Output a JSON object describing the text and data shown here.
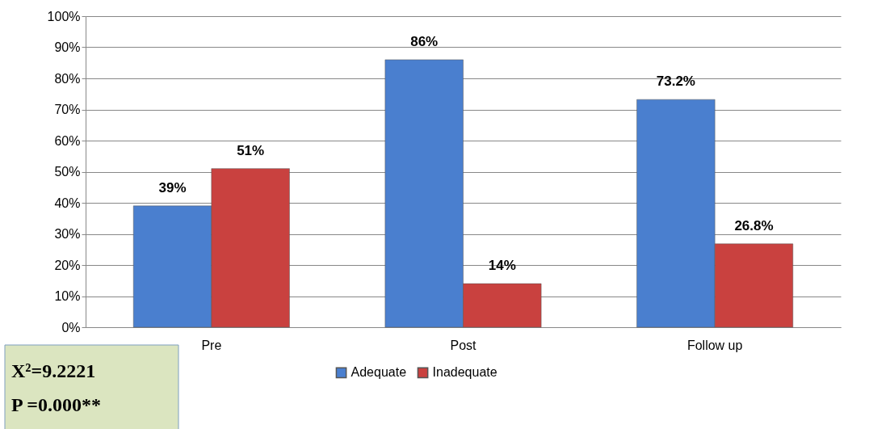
{
  "chart_data": {
    "type": "bar",
    "categories": [
      "Pre",
      "Post",
      "Follow up"
    ],
    "series": [
      {
        "name": "Adequate",
        "color": "#4a7fcf",
        "values": [
          39,
          86,
          73.2
        ],
        "value_labels": [
          "39%",
          "86%",
          "73.2%"
        ]
      },
      {
        "name": "Inadequate",
        "color": "#c9413f",
        "values": [
          51,
          14,
          26.8
        ],
        "value_labels": [
          "51%",
          "14%",
          "26.8%"
        ]
      }
    ],
    "ylim": [
      0,
      100
    ],
    "yticks": [
      {
        "value": 0,
        "label": "0%"
      },
      {
        "value": 10,
        "label": "10%"
      },
      {
        "value": 20,
        "label": "20%"
      },
      {
        "value": 30,
        "label": "30%"
      },
      {
        "value": 40,
        "label": "40%"
      },
      {
        "value": 50,
        "label": "50%"
      },
      {
        "value": 60,
        "label": "60%"
      },
      {
        "value": 70,
        "label": "70%"
      },
      {
        "value": 80,
        "label": "80%"
      },
      {
        "value": 90,
        "label": "90%"
      },
      {
        "value": 100,
        "label": "100%"
      }
    ],
    "grid": "y",
    "legend": "bottom",
    "annotations": [
      "X²=9.2221",
      "P =0.000**"
    ]
  }
}
